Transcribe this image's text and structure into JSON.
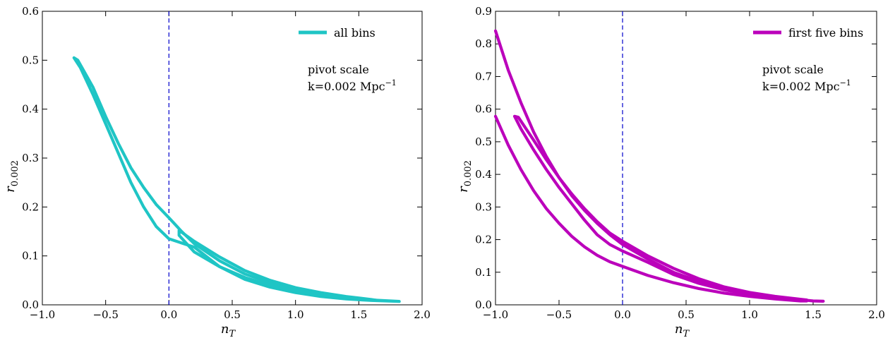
{
  "chart_data": [
    {
      "type": "line",
      "x_symbol": "n",
      "x_sub": "T",
      "y_symbol": "r",
      "y_sub": "0.002",
      "xlim": [
        -1.0,
        2.0
      ],
      "ylim": [
        0.0,
        0.6
      ],
      "xticks": [
        "−1.0",
        "−0.5",
        "0.0",
        "0.5",
        "1.0",
        "1.5",
        "2.0"
      ],
      "xtick_values": [
        -1.0,
        -0.5,
        0.0,
        0.5,
        1.0,
        1.5,
        2.0
      ],
      "yticks": [
        "0.0",
        "0.1",
        "0.2",
        "0.3",
        "0.4",
        "0.5",
        "0.6"
      ],
      "ytick_values": [
        0.0,
        0.1,
        0.2,
        0.3,
        0.4,
        0.5,
        0.6
      ],
      "grid": false,
      "legend_position": "top-right",
      "vline_x": 0.0,
      "vline_color": "#0000cc",
      "annotation_line1": "pivot scale",
      "annotation_line2": "k=0.002 Mpc",
      "annotation_sup": "−1",
      "series": [
        {
          "name": "all bins",
          "color": "#1fc5c5",
          "contours": [
            [
              [
                -0.75,
                0.505
              ],
              [
                -0.72,
                0.5
              ],
              [
                -0.6,
                0.445
              ],
              [
                -0.5,
                0.385
              ],
              [
                -0.4,
                0.33
              ],
              [
                -0.3,
                0.28
              ],
              [
                -0.2,
                0.24
              ],
              [
                -0.1,
                0.205
              ],
              [
                0.0,
                0.178
              ],
              [
                0.1,
                0.15
              ],
              [
                0.2,
                0.125
              ],
              [
                0.4,
                0.09
              ],
              [
                0.6,
                0.063
              ],
              [
                0.8,
                0.045
              ],
              [
                1.0,
                0.032
              ],
              [
                1.2,
                0.022
              ],
              [
                1.4,
                0.015
              ],
              [
                1.6,
                0.01
              ],
              [
                1.82,
                0.007
              ],
              [
                1.6,
                0.009
              ],
              [
                1.4,
                0.012
              ],
              [
                1.2,
                0.017
              ],
              [
                1.0,
                0.025
              ],
              [
                0.8,
                0.036
              ],
              [
                0.6,
                0.052
              ],
              [
                0.4,
                0.078
              ],
              [
                0.2,
                0.118
              ],
              [
                0.0,
                0.135
              ],
              [
                -0.1,
                0.16
              ],
              [
                -0.2,
                0.2
              ],
              [
                -0.3,
                0.25
              ],
              [
                -0.4,
                0.31
              ],
              [
                -0.5,
                0.37
              ],
              [
                -0.6,
                0.43
              ],
              [
                -0.7,
                0.485
              ],
              [
                -0.75,
                0.505
              ]
            ],
            [
              [
                0.08,
                0.152
              ],
              [
                0.2,
                0.13
              ],
              [
                0.4,
                0.098
              ],
              [
                0.6,
                0.07
              ],
              [
                0.8,
                0.05
              ],
              [
                1.0,
                0.035
              ],
              [
                1.2,
                0.025
              ],
              [
                1.4,
                0.017
              ],
              [
                1.6,
                0.011
              ],
              [
                1.65,
                0.009
              ],
              [
                1.4,
                0.014
              ],
              [
                1.2,
                0.02
              ],
              [
                1.0,
                0.028
              ],
              [
                0.8,
                0.04
              ],
              [
                0.6,
                0.056
              ],
              [
                0.4,
                0.078
              ],
              [
                0.2,
                0.108
              ],
              [
                0.08,
                0.142
              ],
              [
                0.08,
                0.152
              ]
            ]
          ]
        }
      ]
    },
    {
      "type": "line",
      "x_symbol": "n",
      "x_sub": "T",
      "y_symbol": "r",
      "y_sub": "0.002",
      "xlim": [
        -1.0,
        2.0
      ],
      "ylim": [
        0.0,
        0.9
      ],
      "xticks": [
        "−1.0",
        "−0.5",
        "0.0",
        "0.5",
        "1.0",
        "1.5",
        "2.0"
      ],
      "xtick_values": [
        -1.0,
        -0.5,
        0.0,
        0.5,
        1.0,
        1.5,
        2.0
      ],
      "yticks": [
        "0.0",
        "0.1",
        "0.2",
        "0.3",
        "0.4",
        "0.5",
        "0.6",
        "0.7",
        "0.8",
        "0.9"
      ],
      "ytick_values": [
        0.0,
        0.1,
        0.2,
        0.3,
        0.4,
        0.5,
        0.6,
        0.7,
        0.8,
        0.9
      ],
      "grid": false,
      "legend_position": "top-right",
      "vline_x": 0.0,
      "vline_color": "#0000cc",
      "annotation_line1": "pivot scale",
      "annotation_line2": "k=0.002 Mpc",
      "annotation_sup": "−1",
      "series": [
        {
          "name": "first five bins",
          "color": "#bb00bb",
          "contours": [
            [
              [
                -1.0,
                0.84
              ],
              [
                -0.9,
                0.72
              ],
              [
                -0.8,
                0.62
              ],
              [
                -0.7,
                0.53
              ],
              [
                -0.6,
                0.455
              ],
              [
                -0.5,
                0.39
              ],
              [
                -0.4,
                0.335
              ],
              [
                -0.3,
                0.29
              ],
              [
                -0.2,
                0.25
              ],
              [
                -0.1,
                0.215
              ],
              [
                0.0,
                0.185
              ],
              [
                0.2,
                0.14
              ],
              [
                0.4,
                0.1
              ],
              [
                0.6,
                0.072
              ],
              [
                0.8,
                0.051
              ],
              [
                1.0,
                0.035
              ],
              [
                1.2,
                0.024
              ],
              [
                1.4,
                0.016
              ],
              [
                1.5,
                0.012
              ],
              [
                1.58,
                0.011
              ]
            ],
            [
              [
                -1.0,
                0.578
              ],
              [
                -0.9,
                0.49
              ],
              [
                -0.8,
                0.415
              ],
              [
                -0.7,
                0.35
              ],
              [
                -0.6,
                0.295
              ],
              [
                -0.5,
                0.25
              ],
              [
                -0.4,
                0.21
              ],
              [
                -0.3,
                0.178
              ],
              [
                -0.2,
                0.152
              ],
              [
                -0.1,
                0.132
              ],
              [
                0.0,
                0.118
              ],
              [
                0.2,
                0.09
              ],
              [
                0.4,
                0.068
              ],
              [
                0.6,
                0.05
              ],
              [
                0.8,
                0.036
              ],
              [
                1.0,
                0.026
              ],
              [
                1.2,
                0.018
              ],
              [
                1.4,
                0.012
              ],
              [
                1.45,
                0.012
              ]
            ],
            [
              [
                -0.85,
                0.578
              ],
              [
                -0.82,
                0.575
              ],
              [
                -0.7,
                0.505
              ],
              [
                -0.6,
                0.445
              ],
              [
                -0.5,
                0.39
              ],
              [
                -0.4,
                0.34
              ],
              [
                -0.3,
                0.295
              ],
              [
                -0.2,
                0.255
              ],
              [
                -0.1,
                0.22
              ],
              [
                0.0,
                0.195
              ],
              [
                0.2,
                0.15
              ],
              [
                0.4,
                0.112
              ],
              [
                0.6,
                0.08
              ],
              [
                0.8,
                0.055
              ],
              [
                1.0,
                0.038
              ],
              [
                1.2,
                0.026
              ],
              [
                1.4,
                0.017
              ],
              [
                1.45,
                0.015
              ],
              [
                1.2,
                0.023
              ],
              [
                1.0,
                0.032
              ],
              [
                0.8,
                0.046
              ],
              [
                0.6,
                0.066
              ],
              [
                0.4,
                0.093
              ],
              [
                0.2,
                0.13
              ],
              [
                0.0,
                0.165
              ],
              [
                -0.1,
                0.185
              ],
              [
                -0.2,
                0.215
              ],
              [
                -0.3,
                0.26
              ],
              [
                -0.4,
                0.31
              ],
              [
                -0.5,
                0.36
              ],
              [
                -0.6,
                0.415
              ],
              [
                -0.7,
                0.475
              ],
              [
                -0.8,
                0.54
              ],
              [
                -0.85,
                0.578
              ]
            ]
          ]
        }
      ]
    }
  ]
}
